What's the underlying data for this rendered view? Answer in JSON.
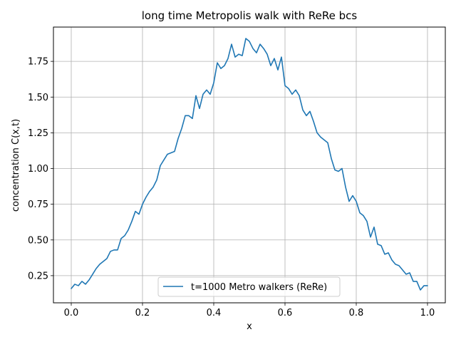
{
  "chart_data": {
    "type": "line",
    "title": "long time Metropolis walk with ReRe bcs",
    "xlabel": "x",
    "ylabel": "concentration C(x,t)",
    "xlim": [
      -0.05,
      1.05
    ],
    "ylim": [
      0.06,
      1.99
    ],
    "x_ticks": [
      0.0,
      0.2,
      0.4,
      0.6,
      0.8,
      1.0
    ],
    "x_tick_labels": [
      "0.0",
      "0.2",
      "0.4",
      "0.6",
      "0.8",
      "1.0"
    ],
    "y_ticks": [
      0.25,
      0.5,
      0.75,
      1.0,
      1.25,
      1.5,
      1.75
    ],
    "y_tick_labels": [
      "0.25",
      "0.50",
      "0.75",
      "1.00",
      "1.25",
      "1.50",
      "1.75"
    ],
    "grid": true,
    "legend_position": "lower center",
    "series": [
      {
        "name": "t=1000 Metro walkers (ReRe)",
        "color": "#1f77b4",
        "x": [
          0.0,
          0.01,
          0.02,
          0.03,
          0.04,
          0.05,
          0.06,
          0.07,
          0.08,
          0.09,
          0.1,
          0.11,
          0.12,
          0.13,
          0.14,
          0.15,
          0.16,
          0.17,
          0.18,
          0.19,
          0.2,
          0.21,
          0.22,
          0.23,
          0.24,
          0.25,
          0.26,
          0.27,
          0.28,
          0.29,
          0.3,
          0.31,
          0.32,
          0.33,
          0.34,
          0.35,
          0.36,
          0.37,
          0.38,
          0.39,
          0.4,
          0.41,
          0.42,
          0.43,
          0.44,
          0.45,
          0.46,
          0.47,
          0.48,
          0.49,
          0.5,
          0.51,
          0.52,
          0.53,
          0.54,
          0.55,
          0.56,
          0.57,
          0.58,
          0.59,
          0.6,
          0.61,
          0.62,
          0.63,
          0.64,
          0.65,
          0.66,
          0.67,
          0.68,
          0.69,
          0.7,
          0.71,
          0.72,
          0.73,
          0.74,
          0.75,
          0.76,
          0.77,
          0.78,
          0.79,
          0.8,
          0.81,
          0.82,
          0.83,
          0.84,
          0.85,
          0.86,
          0.87,
          0.88,
          0.89,
          0.9,
          0.91,
          0.92,
          0.93,
          0.94,
          0.95,
          0.96,
          0.97,
          0.98,
          0.99,
          1.0
        ],
        "y": [
          0.16,
          0.19,
          0.18,
          0.21,
          0.19,
          0.22,
          0.26,
          0.3,
          0.33,
          0.35,
          0.37,
          0.42,
          0.43,
          0.43,
          0.51,
          0.53,
          0.57,
          0.63,
          0.7,
          0.68,
          0.75,
          0.8,
          0.84,
          0.87,
          0.92,
          1.02,
          1.06,
          1.1,
          1.11,
          1.12,
          1.21,
          1.28,
          1.37,
          1.37,
          1.35,
          1.51,
          1.42,
          1.52,
          1.55,
          1.52,
          1.6,
          1.74,
          1.7,
          1.72,
          1.77,
          1.87,
          1.78,
          1.8,
          1.79,
          1.91,
          1.89,
          1.84,
          1.81,
          1.87,
          1.84,
          1.8,
          1.72,
          1.77,
          1.69,
          1.78,
          1.58,
          1.56,
          1.52,
          1.55,
          1.51,
          1.41,
          1.37,
          1.4,
          1.33,
          1.25,
          1.22,
          1.2,
          1.18,
          1.07,
          0.99,
          0.98,
          1.0,
          0.87,
          0.77,
          0.81,
          0.77,
          0.69,
          0.67,
          0.63,
          0.52,
          0.59,
          0.47,
          0.46,
          0.4,
          0.41,
          0.36,
          0.33,
          0.32,
          0.29,
          0.26,
          0.27,
          0.21,
          0.21,
          0.15,
          0.18,
          0.18
        ]
      }
    ]
  }
}
